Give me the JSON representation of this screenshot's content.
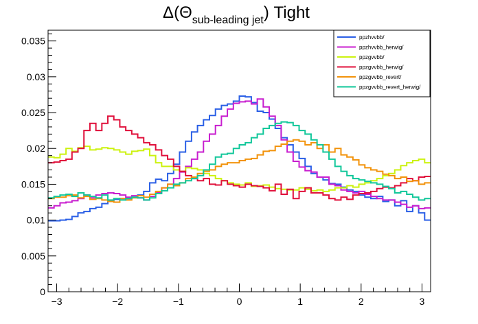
{
  "chart_data": {
    "type": "line",
    "title": {
      "prefix": "Δ(Θ",
      "subscript": "sub-leading jet",
      "suffix": ") Tight"
    },
    "xlabel": "",
    "ylabel": "",
    "xlim": [
      -3.1416,
      3.1416
    ],
    "ylim": [
      0,
      0.0365
    ],
    "x_ticks": [
      -3,
      -2,
      -1,
      0,
      1,
      2,
      3
    ],
    "x_tick_labels": [
      "−3",
      "−2",
      "−1",
      "0",
      "1",
      "2",
      "3"
    ],
    "y_ticks": [
      0,
      0.005,
      0.01,
      0.015,
      0.02,
      0.025,
      0.03,
      0.035
    ],
    "y_tick_labels": [
      "0",
      "0.005",
      "0.01",
      "0.015",
      "0.02",
      "0.025",
      "0.03",
      "0.035"
    ],
    "grid": false,
    "legend_position": "top-right",
    "bins": 64,
    "series": [
      {
        "name": "ppzhvvbb/",
        "color": "#2a5fe6",
        "values": [
          0.0099,
          0.0099,
          0.01,
          0.0101,
          0.0105,
          0.011,
          0.0112,
          0.0116,
          0.0118,
          0.0123,
          0.0127,
          0.0129,
          0.013,
          0.013,
          0.0132,
          0.0135,
          0.014,
          0.0152,
          0.0157,
          0.0155,
          0.0165,
          0.0178,
          0.0195,
          0.021,
          0.0223,
          0.0232,
          0.024,
          0.0246,
          0.0255,
          0.026,
          0.0262,
          0.0266,
          0.0273,
          0.0272,
          0.0264,
          0.0252,
          0.025,
          0.0241,
          0.0228,
          0.0215,
          0.0205,
          0.0195,
          0.0186,
          0.0175,
          0.0165,
          0.016,
          0.0156,
          0.0151,
          0.015,
          0.0146,
          0.0142,
          0.014,
          0.0135,
          0.0132,
          0.013,
          0.0133,
          0.0126,
          0.0128,
          0.012,
          0.0127,
          0.0112,
          0.012,
          0.011,
          0.01
        ]
      },
      {
        "name": "ppzhvvbb_herwig/",
        "color": "#c81ecf",
        "values": [
          0.0117,
          0.012,
          0.0124,
          0.0125,
          0.0127,
          0.013,
          0.0135,
          0.0131,
          0.0135,
          0.0137,
          0.0138,
          0.0137,
          0.0135,
          0.0132,
          0.0134,
          0.0131,
          0.0128,
          0.0133,
          0.0138,
          0.0145,
          0.015,
          0.0158,
          0.0167,
          0.0175,
          0.0185,
          0.0195,
          0.021,
          0.022,
          0.0232,
          0.0245,
          0.0255,
          0.0263,
          0.0265,
          0.0266,
          0.0262,
          0.0269,
          0.0258,
          0.0245,
          0.0232,
          0.0212,
          0.0195,
          0.0182,
          0.0174,
          0.0169,
          0.0167,
          0.016,
          0.016,
          0.015,
          0.0148,
          0.0142,
          0.014,
          0.0138,
          0.014,
          0.0136,
          0.0133,
          0.013,
          0.0128,
          0.0128,
          0.0125,
          0.0122,
          0.0118,
          0.012,
          0.0116,
          0.0117
        ]
      },
      {
        "name": "ppzgvvbb/",
        "color": "#ccf20f",
        "values": [
          0.0188,
          0.0187,
          0.0192,
          0.02,
          0.0196,
          0.0201,
          0.0203,
          0.0198,
          0.0199,
          0.0201,
          0.02,
          0.0198,
          0.0195,
          0.0192,
          0.0196,
          0.0197,
          0.0199,
          0.019,
          0.018,
          0.0175,
          0.0175,
          0.017,
          0.0168,
          0.0173,
          0.0172,
          0.017,
          0.0165,
          0.0162,
          0.0158,
          0.0155,
          0.0152,
          0.015,
          0.0149,
          0.0152,
          0.0147,
          0.0148,
          0.0149,
          0.0146,
          0.0144,
          0.0143,
          0.0142,
          0.0142,
          0.0145,
          0.0143,
          0.0141,
          0.0142,
          0.014,
          0.0142,
          0.0145,
          0.0145,
          0.0148,
          0.0146,
          0.015,
          0.0152,
          0.0155,
          0.0158,
          0.0162,
          0.0165,
          0.017,
          0.0176,
          0.018,
          0.0183,
          0.0185,
          0.018
        ]
      },
      {
        "name": "ppzgvvbb_herwig/",
        "color": "#e0103b",
        "values": [
          0.018,
          0.0181,
          0.0183,
          0.0185,
          0.0195,
          0.02,
          0.0225,
          0.0235,
          0.0225,
          0.0235,
          0.0245,
          0.024,
          0.023,
          0.0225,
          0.022,
          0.0215,
          0.0208,
          0.0205,
          0.0198,
          0.019,
          0.0185,
          0.0175,
          0.0168,
          0.0162,
          0.0158,
          0.0155,
          0.0158,
          0.015,
          0.0149,
          0.0155,
          0.015,
          0.0148,
          0.0146,
          0.015,
          0.0148,
          0.0147,
          0.0145,
          0.0141,
          0.015,
          0.0136,
          0.0143,
          0.013,
          0.014,
          0.0145,
          0.0138,
          0.0138,
          0.0135,
          0.013,
          0.0128,
          0.0132,
          0.0129,
          0.0135,
          0.0137,
          0.0138,
          0.014,
          0.0144,
          0.0146,
          0.0145,
          0.0148,
          0.0152,
          0.0158,
          0.0155,
          0.016,
          0.0161
        ]
      },
      {
        "name": "ppzgvvbb_revert/",
        "color": "#f2920a",
        "values": [
          0.013,
          0.0132,
          0.0132,
          0.0134,
          0.0135,
          0.0131,
          0.0133,
          0.0129,
          0.013,
          0.0128,
          0.0126,
          0.0125,
          0.013,
          0.0128,
          0.0131,
          0.0134,
          0.0132,
          0.0136,
          0.014,
          0.0145,
          0.015,
          0.0148,
          0.0152,
          0.0158,
          0.016,
          0.0165,
          0.0168,
          0.017,
          0.0175,
          0.0178,
          0.018,
          0.018,
          0.0183,
          0.0185,
          0.0186,
          0.0191,
          0.0196,
          0.0197,
          0.0203,
          0.0206,
          0.021,
          0.0212,
          0.021,
          0.0205,
          0.0208,
          0.02,
          0.0205,
          0.0195,
          0.02,
          0.0191,
          0.0188,
          0.0184,
          0.0177,
          0.0173,
          0.017,
          0.0168,
          0.0164,
          0.0162,
          0.0158,
          0.016,
          0.0154,
          0.0155,
          0.015,
          0.0152
        ]
      },
      {
        "name": "ppzgvvbb_revert_herwig/",
        "color": "#11c79a",
        "values": [
          0.0131,
          0.0133,
          0.0135,
          0.0136,
          0.0133,
          0.0138,
          0.0135,
          0.0133,
          0.0131,
          0.0135,
          0.0128,
          0.013,
          0.0128,
          0.013,
          0.0132,
          0.0131,
          0.0128,
          0.0131,
          0.0137,
          0.0141,
          0.0145,
          0.015,
          0.0152,
          0.0155,
          0.0158,
          0.0162,
          0.017,
          0.0178,
          0.0188,
          0.0192,
          0.0193,
          0.02,
          0.0205,
          0.0208,
          0.0215,
          0.022,
          0.0228,
          0.0232,
          0.0235,
          0.0237,
          0.0236,
          0.0232,
          0.0225,
          0.022,
          0.0212,
          0.0205,
          0.0195,
          0.0185,
          0.0175,
          0.0168,
          0.0162,
          0.0158,
          0.0156,
          0.0154,
          0.0152,
          0.015,
          0.0147,
          0.0144,
          0.0138,
          0.014,
          0.0136,
          0.0132,
          0.0128,
          0.013
        ]
      }
    ]
  }
}
